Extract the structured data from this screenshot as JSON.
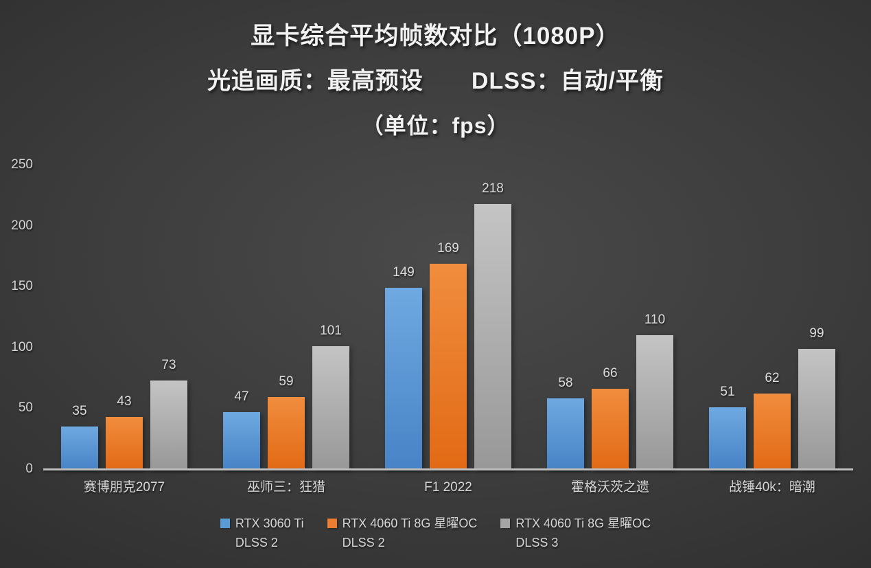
{
  "chart_data": {
    "type": "bar",
    "title": "显卡综合平均帧数对比（1080P）",
    "subtitle": "光追画质：最高预设　　DLSS：自动/平衡",
    "unit_label": "（单位：fps）",
    "title_lines": [
      "显卡综合平均帧数对比（1080P）",
      "光追画质：最高预设　　DLSS：自动/平衡",
      "（单位：fps）"
    ],
    "categories": [
      "赛博朋克2077",
      "巫师三：狂猎",
      "F1 2022",
      "霍格沃茨之遗",
      "战锤40k：暗潮"
    ],
    "series": [
      {
        "name": "RTX 3060 Ti DLSS 2",
        "legend_lines": [
          "RTX 3060 Ti",
          "DLSS 2"
        ],
        "color": "#5B9BD5",
        "color_light": "#6FA9E1",
        "color_dark": "#4783C6",
        "values": [
          35,
          47,
          149,
          58,
          51
        ]
      },
      {
        "name": "RTX 4060 Ti 8G 星曜OC DLSS 2",
        "legend_lines": [
          "RTX 4060 Ti 8G 星曜OC",
          "DLSS 2"
        ],
        "color": "#ED7D31",
        "color_light": "#F08D3E",
        "color_dark": "#E26A15",
        "values": [
          43,
          59,
          169,
          66,
          62
        ]
      },
      {
        "name": "RTX 4060 Ti 8G 星曜OC DLSS 3",
        "legend_lines": [
          "RTX 4060 Ti 8G 星曜OC",
          "DLSS 3"
        ],
        "color": "#A5A5A5",
        "color_light": "#C4C4C4",
        "color_dark": "#989898",
        "values": [
          73,
          101,
          218,
          110,
          99
        ]
      }
    ],
    "y_ticks": [
      0,
      50,
      100,
      150,
      200,
      250
    ],
    "ylim": [
      0,
      250
    ],
    "grid": false,
    "legend_position": "bottom",
    "axis_line_color": "#BDBDBD",
    "background_color": "#3E3E3E",
    "text_color": "#D6D6D6"
  }
}
